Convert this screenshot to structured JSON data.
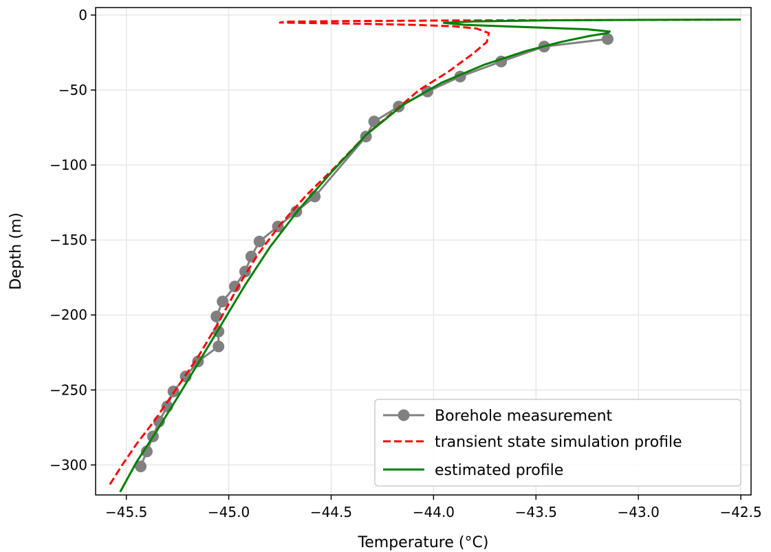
{
  "chart_data": {
    "type": "line",
    "xlabel": "Temperature (°C)",
    "ylabel": "Depth (m)",
    "xlim": [
      -45.65,
      -42.45
    ],
    "ylim": [
      -320,
      5
    ],
    "x_ticks": [
      -45.5,
      -45.0,
      -44.5,
      -44.0,
      -43.5,
      -43.0,
      -42.5
    ],
    "x_tick_labels": [
      "−45.5",
      "−45.0",
      "−44.5",
      "−44.0",
      "−43.5",
      "−43.0",
      "−42.5"
    ],
    "y_ticks": [
      0,
      -50,
      -100,
      -150,
      -200,
      -250,
      -300
    ],
    "y_tick_labels": [
      "0",
      "−50",
      "−100",
      "−150",
      "−200",
      "−250",
      "−300"
    ],
    "grid": true,
    "legend_position": "lower-right",
    "colors": {
      "measurement": "#808080",
      "transient": "#ff0000",
      "estimated": "#008000"
    },
    "series": [
      {
        "name": "Borehole measurement",
        "style": "line-marker",
        "x": [
          -45.43,
          -45.4,
          -45.37,
          -45.34,
          -45.3,
          -45.27,
          -45.21,
          -45.15,
          -45.05,
          -45.05,
          -45.06,
          -45.03,
          -44.97,
          -44.92,
          -44.89,
          -44.85,
          -44.76,
          -44.67,
          -44.58,
          -44.33,
          -44.29,
          -44.17,
          -44.03,
          -43.87,
          -43.67,
          -43.46,
          -43.15
        ],
        "y": [
          -301,
          -291,
          -281,
          -271,
          -261,
          -251,
          -241,
          -231,
          -221,
          -211,
          -201,
          -191,
          -181,
          -171,
          -161,
          -151,
          -141,
          -131,
          -121,
          -81,
          -71,
          -61,
          -51,
          -41,
          -31,
          -21,
          -16
        ]
      },
      {
        "name": "transient state simulation profile",
        "style": "dashed",
        "x": [
          -45.58,
          -45.52,
          -45.45,
          -45.36,
          -45.26,
          -45.15,
          -45.05,
          -44.95,
          -44.86,
          -44.75,
          -44.62,
          -44.47,
          -44.33,
          -44.2,
          -44.07,
          -43.93,
          -43.81,
          -43.74,
          -43.73,
          -43.79,
          -43.9,
          -44.1,
          -44.35,
          -44.6,
          -44.75,
          -44.72,
          -44.4,
          -43.9,
          -43.3,
          -42.8,
          -42.5
        ],
        "y": [
          -313,
          -300,
          -286,
          -270,
          -250,
          -228,
          -205,
          -180,
          -160,
          -140,
          -120,
          -100,
          -80,
          -65,
          -50,
          -38,
          -26,
          -18,
          -12,
          -9,
          -7.5,
          -6.5,
          -5.8,
          -5.3,
          -5,
          -4.4,
          -4,
          -3.6,
          -3.4,
          -3.2,
          -3
        ]
      },
      {
        "name": "estimated profile",
        "style": "solid",
        "x": [
          -45.53,
          -45.45,
          -45.35,
          -45.25,
          -45.14,
          -45.03,
          -44.92,
          -44.8,
          -44.66,
          -44.5,
          -44.33,
          -44.15,
          -43.96,
          -43.75,
          -43.55,
          -43.38,
          -43.24,
          -43.15,
          -43.14,
          -43.25,
          -43.55,
          -43.85,
          -43.95,
          -43.8,
          -43.4,
          -43.0,
          -42.5
        ],
        "y": [
          -318,
          -298,
          -277,
          -255,
          -230,
          -205,
          -180,
          -155,
          -130,
          -105,
          -80,
          -60,
          -45,
          -33,
          -24,
          -18,
          -14,
          -12,
          -11,
          -9.5,
          -8,
          -6.5,
          -5.2,
          -4.2,
          -3.5,
          -3.2,
          -3
        ]
      }
    ]
  }
}
